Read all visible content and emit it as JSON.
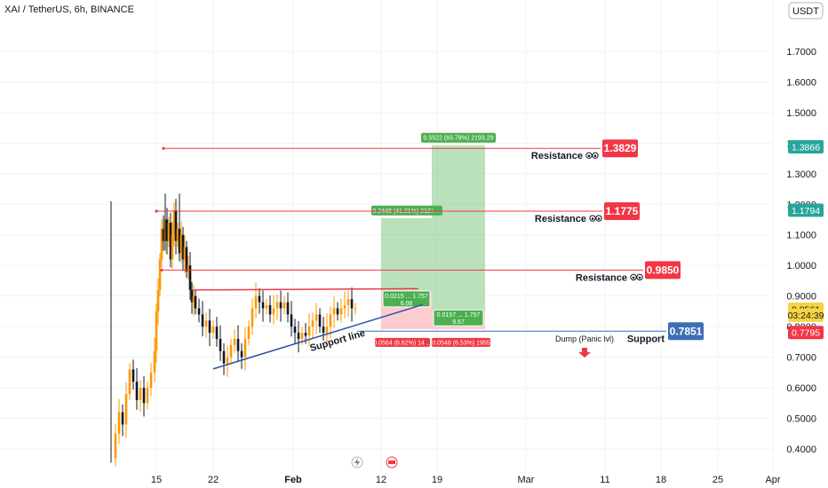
{
  "chart_data": {
    "type": "candlestick",
    "symbol_title": "XAI / TetherUS, 6h, BINANCE",
    "currency_button": "USDT",
    "y_ticks": [
      "1.7000",
      "1.6000",
      "1.5000",
      "1.4000",
      "1.3000",
      "1.2000",
      "1.1000",
      "1.0000",
      "0.9000",
      "0.8000",
      "0.7000",
      "0.6000",
      "0.5000",
      "0.4000"
    ],
    "y_tick_values": [
      1.7,
      1.6,
      1.5,
      1.4,
      1.3,
      1.2,
      1.1,
      1.0,
      0.9,
      0.8,
      0.7,
      0.6,
      0.5,
      0.4
    ],
    "x_ticks": [
      "15",
      "22",
      "Feb",
      "12",
      "19",
      "Mar",
      "11",
      "18",
      "25",
      "Apr"
    ],
    "ylim": [
      0.345,
      1.81
    ],
    "price_axis_labels": [
      {
        "text": "1.3866",
        "value": 1.3866,
        "color": "#26a69a"
      },
      {
        "text": "1.1794",
        "value": 1.1794,
        "color": "#26a69a"
      },
      {
        "text": "0.8561",
        "value": 0.8561,
        "color": "#f5d442",
        "text_color": "#131722"
      },
      {
        "text": "03:24:39",
        "value": 0.8361,
        "color": "#f5d442",
        "text_color": "#131722"
      },
      {
        "text": "0.7795",
        "value": 0.7795,
        "color": "#f23645"
      }
    ],
    "levels": [
      {
        "kind": "Resistance",
        "value_text": "1.3829",
        "value": 1.3829,
        "color": "#f23645"
      },
      {
        "kind": "Resistance",
        "value_text": "1.1775",
        "value": 1.1775,
        "color": "#f23645"
      },
      {
        "kind": "Resistance",
        "value_text": "0.9850",
        "value": 0.985,
        "color": "#f23645"
      },
      {
        "kind": "Support",
        "value_text": "0.7851",
        "value": 0.7851,
        "color": "#3d6fb5"
      }
    ],
    "annotations": {
      "support_line": "Support line",
      "dump": "Dump (Panic lvl)"
    },
    "positions": [
      {
        "target_text": "0.2448 (41.21%) 2121 ...",
        "entry_text_1": "0.0215 ... 1.757",
        "entry_text_2": "6.08",
        "stop_text": "0.0564 (6.62%) 14 ...",
        "entry": 0.914,
        "target": 1.155,
        "stop": 0.792
      },
      {
        "target_text": "0.5522 (65.78%) 2193.29",
        "entry_text_1": "0.0157 ... 1.757",
        "entry_text_2": "9.67",
        "stop_text": "0.0548 (6.53%) 1955",
        "entry": 0.852,
        "target": 1.393,
        "stop": 0.792
      }
    ],
    "candles_summary": {
      "range_low": 0.355,
      "range_high": 1.235,
      "last_close": 0.8561
    }
  }
}
